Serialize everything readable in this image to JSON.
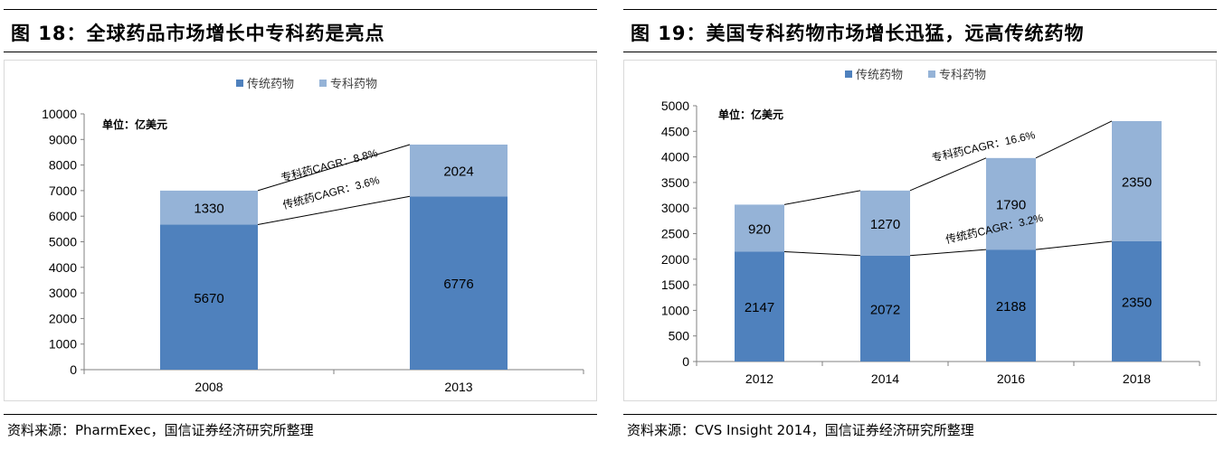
{
  "panels": [
    {
      "title": "图 18：全球药品市场增长中专科药是亮点",
      "source": "资料来源：PharmExec，国信证券经济研究所整理"
    },
    {
      "title": "图 19：美国专科药物市场增长迅猛，远高传统药物",
      "source": "资料来源：CVS Insight 2014，国信证券经济研究所整理"
    }
  ],
  "chart_data": [
    {
      "type": "bar",
      "stacked": true,
      "categories": [
        "2008",
        "2013"
      ],
      "series": [
        {
          "name": "传统药物",
          "color": "#4f81bd",
          "values": [
            5670,
            6776
          ]
        },
        {
          "name": "专科药物",
          "color": "#95b3d7",
          "values": [
            1330,
            2024
          ]
        }
      ],
      "ylim": [
        0,
        10000
      ],
      "yticks": [
        0,
        1000,
        2000,
        3000,
        4000,
        5000,
        6000,
        7000,
        8000,
        9000,
        10000
      ],
      "unit_label": "单位：亿美元",
      "legend_position": "top-center",
      "annotations": [
        "专科药CAGR：8.8%",
        "传统药CAGR：3.6%"
      ]
    },
    {
      "type": "bar",
      "stacked": true,
      "categories": [
        "2012",
        "2014",
        "2016",
        "2018"
      ],
      "series": [
        {
          "name": "传统药物",
          "color": "#4f81bd",
          "values": [
            2147,
            2072,
            2188,
            2350
          ]
        },
        {
          "name": "专科药物",
          "color": "#95b3d7",
          "values": [
            920,
            1270,
            1790,
            2350
          ]
        }
      ],
      "ylim": [
        0,
        5000
      ],
      "yticks": [
        0,
        500,
        1000,
        1500,
        2000,
        2500,
        3000,
        3500,
        4000,
        4500,
        5000
      ],
      "unit_label": "单位：亿美元",
      "legend_position": "top-center",
      "annotations": [
        "专科药CAGR：16.6%",
        "传统药CAGR：3.2%"
      ]
    }
  ]
}
